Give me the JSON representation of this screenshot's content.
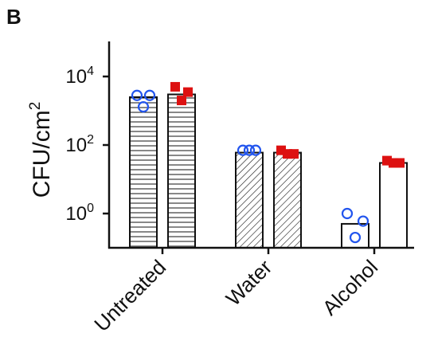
{
  "panel_label": "B",
  "chart_data": {
    "type": "bar",
    "title": "",
    "ylabel": "CFU/cm",
    "ylabel_superscript": "2",
    "yscale": "log",
    "ylim": [
      0.1,
      10000
    ],
    "yticks": [
      {
        "value": 10000,
        "base": "10",
        "exp": "4"
      },
      {
        "value": 100,
        "base": "10",
        "exp": "2"
      },
      {
        "value": 1,
        "base": "10",
        "exp": "0"
      }
    ],
    "categories": [
      "Untreated",
      "Water",
      "Alcohol"
    ],
    "patterns": [
      "horizontal-lines",
      "diagonal-lines",
      "none"
    ],
    "series": [
      {
        "color": "#2255ee",
        "marker": "open-circle",
        "values": [
          2500,
          60,
          0.5
        ],
        "points": [
          [
            2800,
            2800,
            1300
          ],
          [
            70,
            70,
            70
          ],
          [
            1.0,
            0.6,
            0.2
          ]
        ]
      },
      {
        "color": "#dd1111",
        "marker": "filled-square",
        "values": [
          3000,
          60,
          30
        ],
        "points": [
          [
            5000,
            3500,
            2000
          ],
          [
            70,
            55,
            55
          ],
          [
            35,
            30,
            30
          ]
        ]
      }
    ]
  }
}
